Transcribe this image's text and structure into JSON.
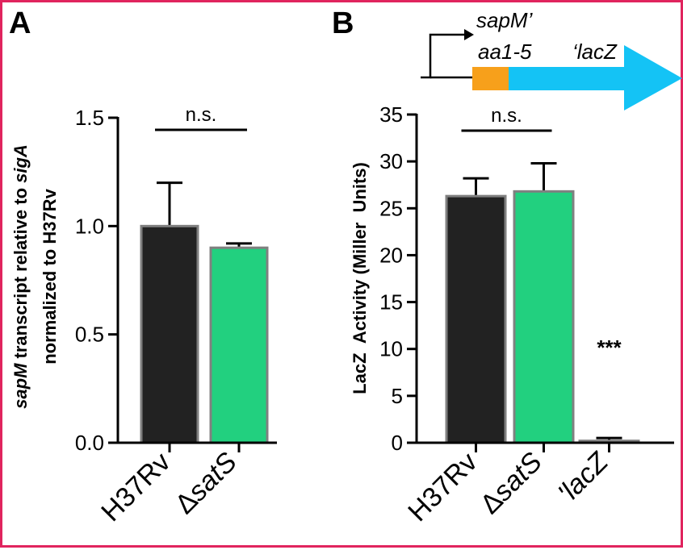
{
  "colors": {
    "border": "#e0245e",
    "bar_black": "#222222",
    "bar_green": "#22d07f",
    "bar_edge": "#808080",
    "orange": "#f7a01b",
    "cyan": "#14c3f5",
    "axis": "#000000"
  },
  "panels": [
    {
      "label": "A"
    },
    {
      "label": "B"
    }
  ],
  "construct": {
    "gene_label_1": "sapM’",
    "gene_label_2": "aa1-5",
    "reporter_label": "‘lacZ"
  },
  "chart_data": [
    {
      "type": "bar",
      "panel": "A",
      "title": "",
      "ylabel_parts": [
        {
          "text": "sapM",
          "italic": true
        },
        {
          "text": " transcript relative to ",
          "italic": false
        },
        {
          "text": "sigA",
          "italic": true
        }
      ],
      "ylabel_line2": "normalized to H37Rv",
      "xlabel": "",
      "categories": [
        {
          "prefix": "",
          "text": "H37Rv",
          "italic": false
        },
        {
          "prefix": "Δ",
          "text": "satS",
          "italic": true
        }
      ],
      "values": [
        1.0,
        0.9
      ],
      "errors": [
        0.2,
        0.02
      ],
      "bar_colors": [
        "#222222",
        "#22d07f"
      ],
      "ylim": [
        0,
        1.5
      ],
      "yticks": [
        0.0,
        0.5,
        1.0,
        1.5
      ],
      "ytick_labels": [
        "0.0",
        "0.5",
        "1.0",
        "1.5"
      ],
      "annotations": [
        {
          "text": "n.s.",
          "between": [
            0,
            1
          ]
        }
      ]
    },
    {
      "type": "bar",
      "panel": "B",
      "title": "",
      "ylabel": "LacZ  Activity (Miller  Units)",
      "xlabel": "",
      "categories": [
        {
          "prefix": "",
          "text": "H37Rv",
          "italic": false
        },
        {
          "prefix": "Δ",
          "text": "satS",
          "italic": true
        },
        {
          "prefix": "",
          "text": "'lacZ",
          "italic": true
        }
      ],
      "values": [
        26.3,
        26.8,
        0.2
      ],
      "errors": [
        1.9,
        3.0,
        0.3
      ],
      "bar_colors": [
        "#222222",
        "#22d07f",
        "#dddddd"
      ],
      "ylim": [
        0,
        35
      ],
      "yticks": [
        0,
        5,
        10,
        15,
        20,
        25,
        30,
        35
      ],
      "ytick_labels": [
        "0",
        "5",
        "10",
        "15",
        "20",
        "25",
        "30",
        "35"
      ],
      "annotations": [
        {
          "text": "n.s.",
          "between": [
            0,
            1
          ]
        },
        {
          "text": "***",
          "over": 2
        }
      ]
    }
  ]
}
